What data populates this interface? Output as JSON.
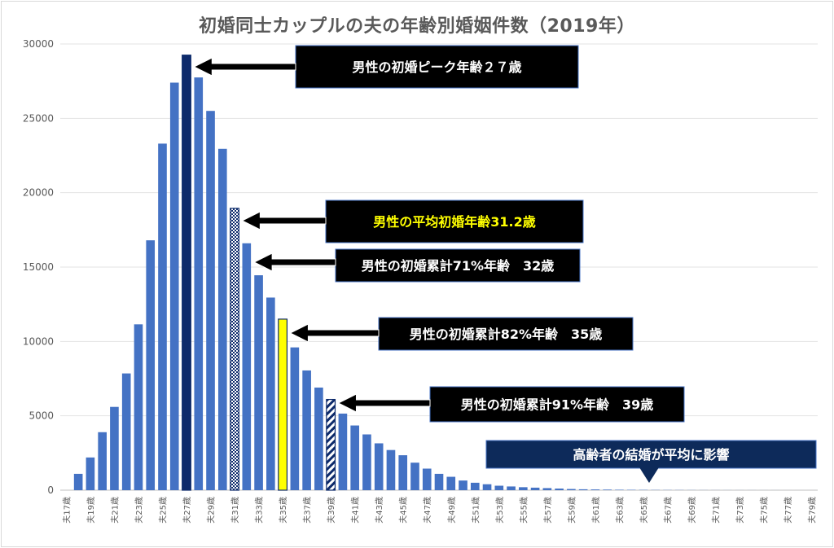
{
  "chart_data": {
    "type": "bar",
    "title": "初婚同士カップルの夫の年齢別婚姻件数（2019年）",
    "ylim": [
      0,
      30000
    ],
    "y_ticks": [
      0,
      5000,
      10000,
      15000,
      20000,
      25000,
      30000
    ],
    "grid": true,
    "categories": [
      "夫17歳",
      "夫18歳",
      "夫19歳",
      "夫20歳",
      "夫21歳",
      "夫22歳",
      "夫23歳",
      "夫24歳",
      "夫25歳",
      "夫26歳",
      "夫27歳",
      "夫28歳",
      "夫29歳",
      "夫30歳",
      "夫31歳",
      "夫32歳",
      "夫33歳",
      "夫34歳",
      "夫35歳",
      "夫36歳",
      "夫37歳",
      "夫38歳",
      "夫39歳",
      "夫40歳",
      "夫41歳",
      "夫42歳",
      "夫43歳",
      "夫44歳",
      "夫45歳",
      "夫46歳",
      "夫47歳",
      "夫48歳",
      "夫49歳",
      "夫50歳",
      "夫51歳",
      "夫52歳",
      "夫53歳",
      "夫54歳",
      "夫55歳",
      "夫56歳",
      "夫57歳",
      "夫58歳",
      "夫59歳",
      "夫60歳",
      "夫61歳",
      "夫62歳",
      "夫63歳",
      "夫64歳",
      "夫65歳",
      "夫66歳",
      "夫67歳",
      "夫68歳",
      "夫69歳",
      "夫70歳",
      "夫71歳",
      "夫72歳",
      "夫73歳",
      "夫74歳",
      "夫75歳",
      "夫76歳",
      "夫77歳",
      "夫78歳",
      "夫79歳"
    ],
    "x_tick_labels": [
      "夫17歳",
      "夫19歳",
      "夫21歳",
      "夫23歳",
      "夫25歳",
      "夫27歳",
      "夫29歳",
      "夫31歳",
      "夫33歳",
      "夫35歳",
      "夫37歳",
      "夫39歳",
      "夫41歳",
      "夫43歳",
      "夫45歳",
      "夫47歳",
      "夫49歳",
      "夫51歳",
      "夫53歳",
      "夫55歳",
      "夫57歳",
      "夫59歳",
      "夫61歳",
      "夫63歳",
      "夫65歳",
      "夫67歳",
      "夫69歳",
      "夫71歳",
      "夫73歳",
      "夫75歳",
      "夫77歳",
      "夫79歳"
    ],
    "values": [
      0,
      1100,
      2200,
      3900,
      5600,
      7850,
      11150,
      16800,
      23300,
      27400,
      29250,
      27750,
      25500,
      22950,
      18950,
      16600,
      14450,
      12950,
      11500,
      9600,
      8050,
      6900,
      6100,
      5150,
      4350,
      3750,
      3150,
      2700,
      2350,
      1850,
      1450,
      1100,
      900,
      650,
      500,
      400,
      300,
      250,
      200,
      170,
      140,
      110,
      80,
      60,
      50,
      40,
      30,
      25,
      20,
      15,
      12,
      10,
      8,
      6,
      5,
      4,
      3,
      3,
      2,
      2,
      1,
      1,
      1
    ],
    "colors": {
      "default": "#4472c4",
      "peak": "#0d2a6b",
      "avg": "#0d2a6b",
      "mid": "#ffff00",
      "late": "#ffffff"
    },
    "highlights": [
      {
        "category": "夫27歳",
        "style": "peak"
      },
      {
        "category": "夫31歳",
        "style": "avg"
      },
      {
        "category": "夫35歳",
        "style": "mid"
      },
      {
        "category": "夫39歳",
        "style": "late"
      }
    ],
    "annotations": [
      {
        "text": "男性の初婚ピーク年齢２７歳",
        "text_color": "#ffffff"
      },
      {
        "text": "男性の平均初婚年齢31.2歳",
        "text_color": "#ffff00"
      },
      {
        "text": "男性の初婚累計71%年齢　32歳",
        "text_color": "#ffffff"
      },
      {
        "text": "男性の初婚累計82%年齢　35歳",
        "text_color": "#ffffff"
      },
      {
        "text": "男性の初婚累計91%年齢　39歳",
        "text_color": "#ffffff"
      },
      {
        "text": "高齢者の結婚が平均に影響",
        "text_color": "#ffffff"
      }
    ]
  }
}
